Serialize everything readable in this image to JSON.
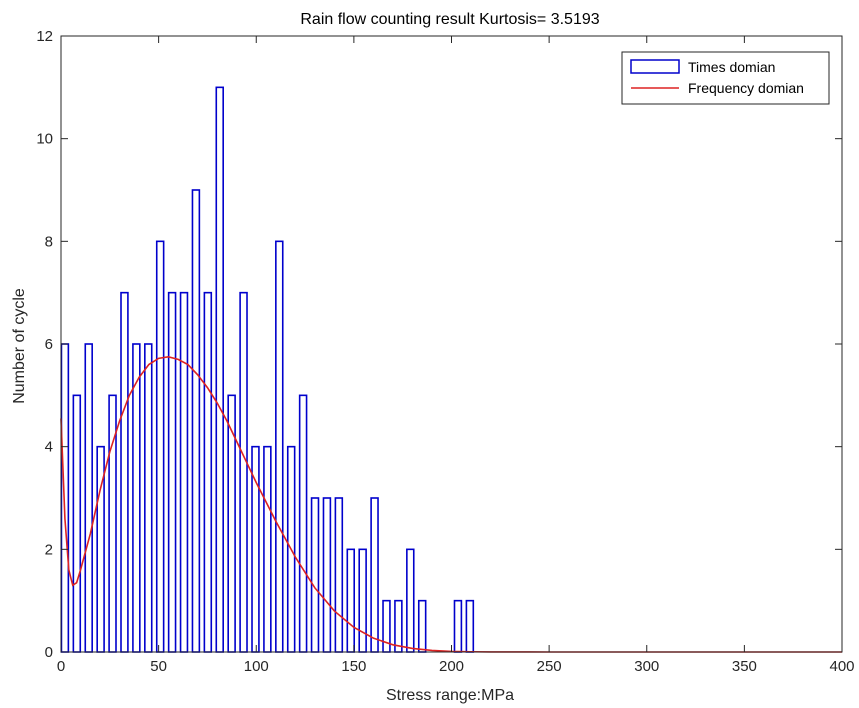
{
  "chart_data": {
    "type": "bar",
    "title": "Rain flow counting result Kurtosis= 3.5193",
    "xlabel": "Stress range:MPa",
    "ylabel": "Number of cycle",
    "xlim": [
      0,
      400
    ],
    "ylim": [
      0,
      12
    ],
    "xticks": [
      0,
      50,
      100,
      150,
      200,
      250,
      300,
      350,
      400
    ],
    "yticks": [
      0,
      2,
      4,
      6,
      8,
      10,
      12
    ],
    "grid": false,
    "legend_position": "top-right",
    "series": [
      {
        "name": "Times domian",
        "kind": "histogram",
        "color": "#0000cc",
        "bin_width": 6.1,
        "x": [
          2.0,
          8.1,
          14.2,
          20.3,
          26.4,
          32.5,
          38.6,
          44.7,
          50.8,
          56.9,
          63.0,
          69.1,
          75.2,
          81.3,
          87.4,
          93.5,
          99.6,
          105.7,
          111.8,
          117.9,
          124.0,
          130.1,
          136.2,
          142.3,
          148.4,
          154.5,
          160.6,
          166.7,
          172.8,
          178.9,
          185.0,
          191.1,
          197.2,
          203.3,
          209.4
        ],
        "values": [
          6,
          5,
          6,
          4,
          5,
          7,
          6,
          6,
          8,
          7,
          7,
          9,
          7,
          11,
          5,
          7,
          4,
          4,
          8,
          4,
          5,
          3,
          3,
          3,
          2,
          2,
          3,
          1,
          1,
          2,
          1,
          0,
          0,
          1,
          1
        ]
      },
      {
        "name": "Frequency domian",
        "kind": "line",
        "color": "#dd2222",
        "x": [
          0,
          2,
          4,
          6,
          8,
          10,
          15,
          20,
          25,
          30,
          35,
          40,
          45,
          50,
          55,
          60,
          65,
          70,
          75,
          80,
          85,
          90,
          95,
          100,
          110,
          120,
          130,
          140,
          150,
          160,
          170,
          180,
          190,
          200,
          210,
          220,
          230,
          240,
          250,
          260,
          270,
          400
        ],
        "y": [
          4.55,
          2.6,
          1.6,
          1.3,
          1.35,
          1.6,
          2.3,
          3.15,
          3.9,
          4.5,
          5.0,
          5.35,
          5.6,
          5.72,
          5.75,
          5.7,
          5.6,
          5.4,
          5.15,
          4.85,
          4.5,
          4.1,
          3.7,
          3.3,
          2.55,
          1.85,
          1.25,
          0.8,
          0.48,
          0.27,
          0.14,
          0.07,
          0.03,
          0.012,
          0.005,
          0.002,
          0.0008,
          0.0003,
          0.0001,
          0.0,
          0.0,
          0.0
        ]
      }
    ]
  }
}
